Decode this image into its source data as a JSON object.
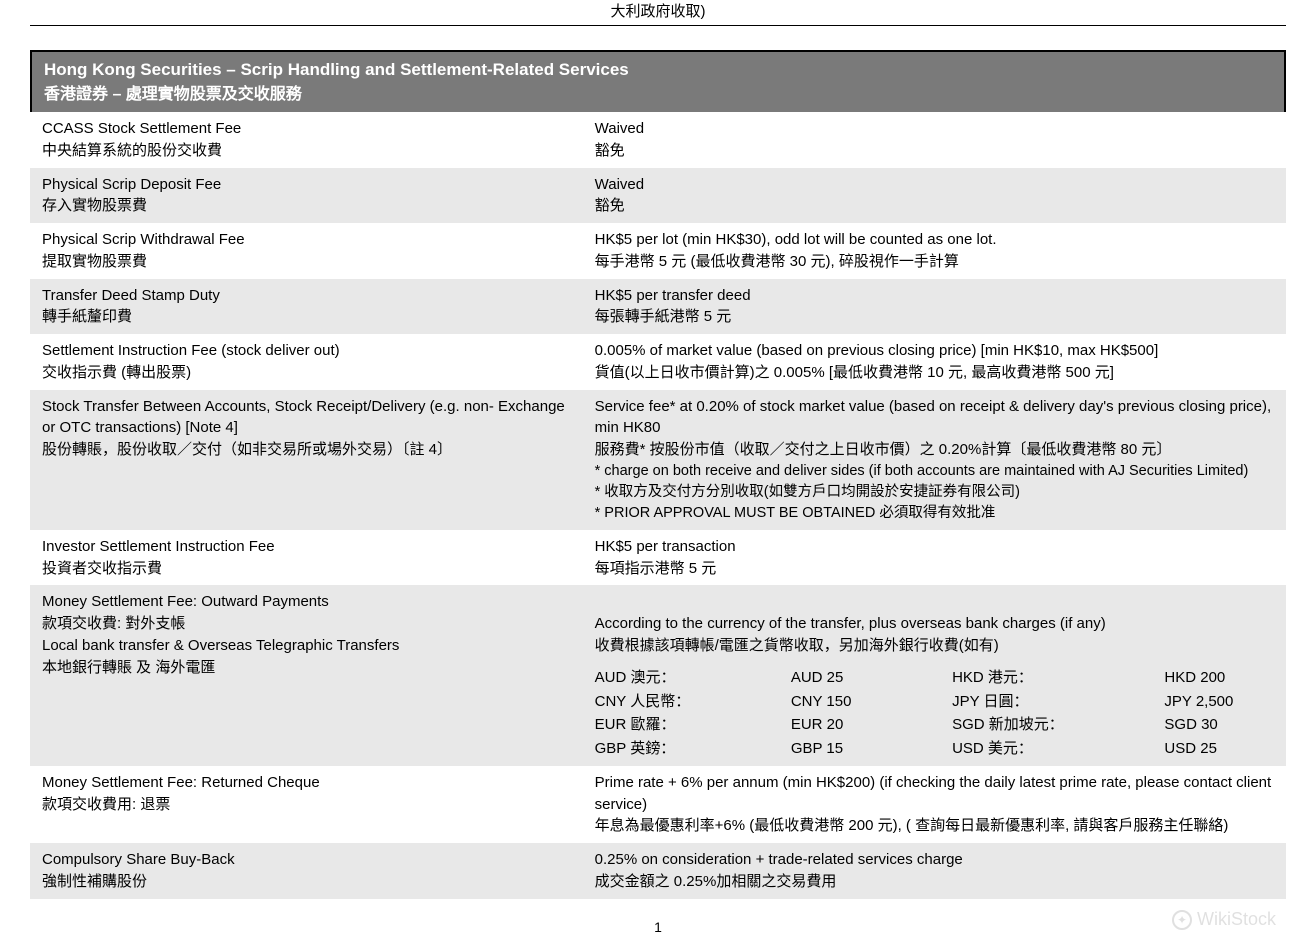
{
  "top_fragment": "大利政府收取)",
  "section_header": {
    "en": "Hong Kong Securities – Scrip Handling and Settlement-Related Services",
    "zh": "香港證券 – 處理實物股票及交收服務"
  },
  "rows": [
    {
      "shade": false,
      "label_en": "CCASS Stock Settlement Fee",
      "label_zh": "中央結算系統的股份交收費",
      "value_en": "Waived",
      "value_zh": "豁免"
    },
    {
      "shade": true,
      "label_en": "Physical Scrip Deposit Fee",
      "label_zh": "存入實物股票費",
      "value_en": "Waived",
      "value_zh": "豁免"
    },
    {
      "shade": false,
      "label_en": "Physical Scrip Withdrawal Fee",
      "label_zh": "提取實物股票費",
      "value_en": "HK$5 per lot (min HK$30), odd lot will be counted as one lot.",
      "value_zh": "每手港幣 5 元 (最低收費港幣 30 元), 碎股視作一手計算"
    },
    {
      "shade": true,
      "label_en": "Transfer Deed Stamp Duty",
      "label_zh": "轉手紙釐印費",
      "value_en": "HK$5 per transfer deed",
      "value_zh": "每張轉手紙港幣 5 元"
    },
    {
      "shade": false,
      "label_en": "Settlement Instruction Fee (stock deliver out)",
      "label_zh": "交收指示費 (轉出股票)",
      "value_en": "0.005% of market value (based on previous closing price) [min HK$10, max HK$500]",
      "value_zh": "貨值(以上日收市價計算)之 0.005% [最低收費港幣 10 元, 最高收費港幣 500 元]"
    },
    {
      "shade": true,
      "label_en": "Stock Transfer Between Accounts, Stock Receipt/Delivery (e.g. non- Exchange or OTC transactions) [Note 4]",
      "label_zh": "股份轉賬，股份收取／交付（如非交易所或場外交易）〔註 4〕",
      "value_en": "Service fee* at 0.20% of stock market value (based on receipt & delivery day's previous closing price), min HK80",
      "value_zh": "服務費* 按股份市值（收取／交付之上日收市價）之 0.20%計算〔最低收費港幣 80 元〕",
      "notes": [
        "* charge on both receive and deliver sides (if both accounts are maintained with AJ Securities Limited)",
        "* 收取方及交付方分別收取(如雙方戶口均開設於安捷証券有限公司)",
        "* PRIOR APPROVAL MUST BE OBTAINED 必須取得有效批准"
      ]
    },
    {
      "shade": false,
      "label_en": "Investor Settlement Instruction Fee",
      "label_zh": "投資者交收指示費",
      "value_en": "HK$5 per transaction",
      "value_zh": "每項指示港幣 5 元"
    }
  ],
  "money_outward": {
    "shade": true,
    "label_en": "Money Settlement Fee: Outward Payments",
    "label_zh1": "款項交收費: 對外支帳",
    "label_en2": "Local bank transfer & Overseas Telegraphic Transfers",
    "label_zh2": "本地銀行轉賬 及 海外電匯",
    "value_en": "According to the currency of the transfer, plus overseas bank charges (if any)",
    "value_zh": "收費根據該項轉帳/電匯之貨幣收取，另加海外銀行收費(如有)",
    "currencies": [
      {
        "label": "AUD 澳元：",
        "amount": "AUD 25"
      },
      {
        "label": "HKD 港元：",
        "amount": "HKD 200"
      },
      {
        "label": "CNY 人民幣：",
        "amount": "CNY 150"
      },
      {
        "label": "JPY 日圓：",
        "amount": "JPY 2,500"
      },
      {
        "label": "EUR 歐羅：",
        "amount": "EUR 20"
      },
      {
        "label": "SGD 新加坡元：",
        "amount": "SGD 30"
      },
      {
        "label": "GBP 英鎊：",
        "amount": "GBP 15"
      },
      {
        "label": "USD 美元：",
        "amount": "USD 25"
      }
    ]
  },
  "returned_cheque": {
    "shade": false,
    "label_en": "Money Settlement Fee: Returned Cheque",
    "label_zh": "款項交收費用: 退票",
    "value_en": "Prime rate + 6% per annum (min HK$200) (if checking the daily latest prime rate, please contact client service)",
    "value_zh": "年息為最優惠利率+6% (最低收費港幣 200 元), ( 查詢每日最新優惠利率, 請與客戶服務主任聯絡)"
  },
  "buyback": {
    "shade": true,
    "label_en": "Compulsory Share Buy-Back",
    "label_zh": "強制性補購股份",
    "value_en": "0.25% on consideration + trade-related services charge",
    "value_zh": "成交金額之 0.25%加相關之交易費用"
  },
  "page_number": "1",
  "watermark": "WikiStock"
}
